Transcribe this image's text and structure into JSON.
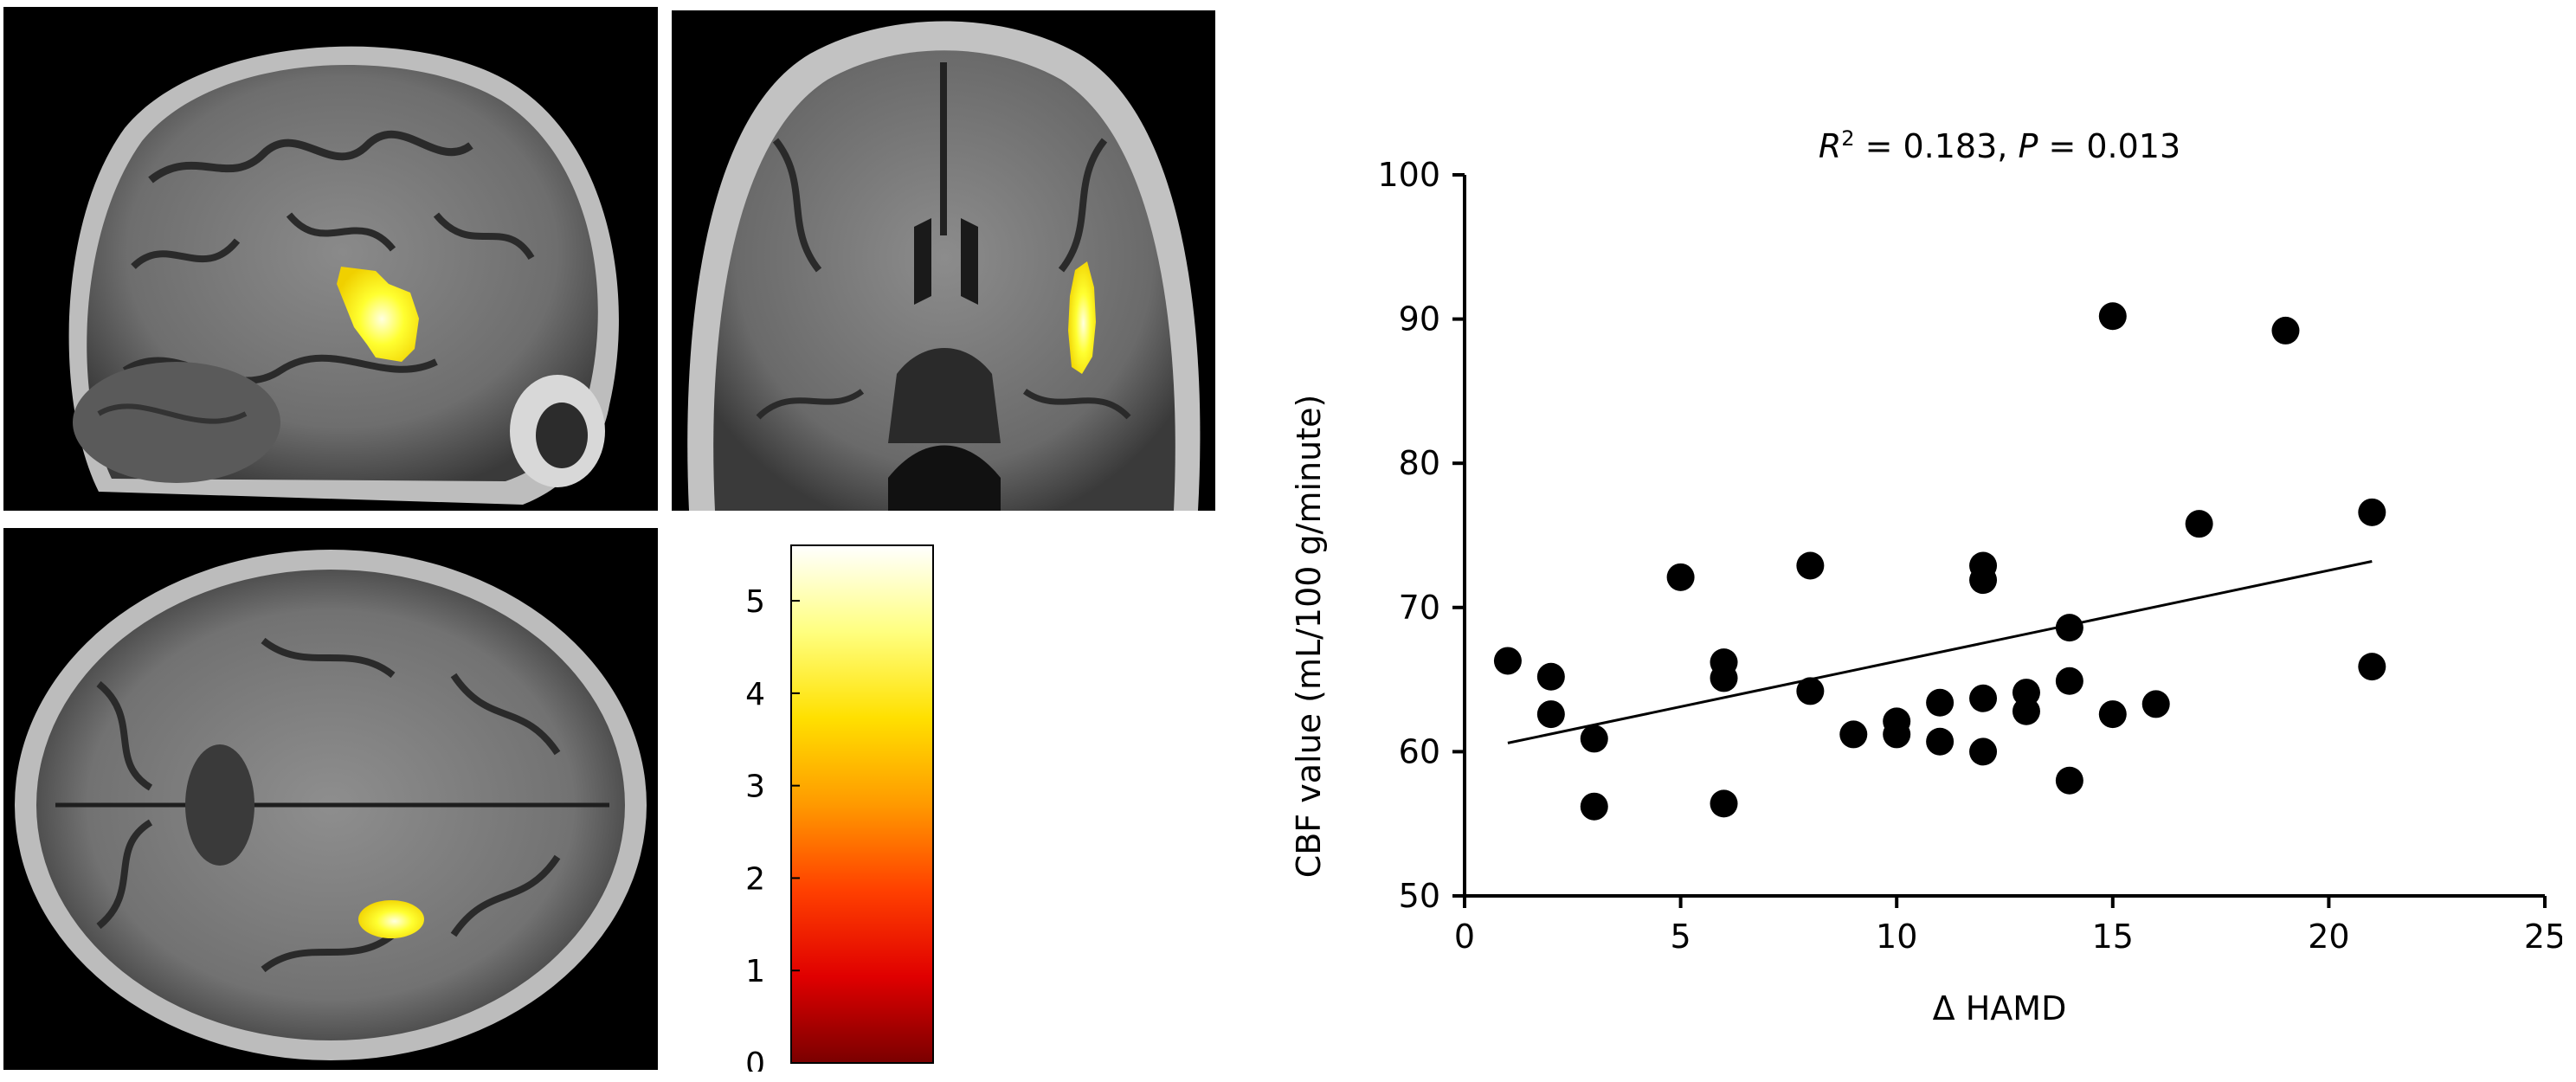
{
  "colorbar": {
    "ticks": [
      "0",
      "1",
      "2",
      "3",
      "4",
      "5"
    ],
    "min": 0,
    "max": 5.6,
    "colors": [
      "#7a0000",
      "#e00000",
      "#ff4000",
      "#ff9a00",
      "#ffe000",
      "#ffff80",
      "#ffffff"
    ]
  },
  "chart_data": {
    "type": "scatter",
    "title_r2_symbol": "R",
    "title_r2_exp": "2",
    "title_r2_value": " = 0.183, ",
    "title_p_symbol": "P",
    "title_p_value": " = 0.013",
    "xlabel": "Δ HAMD",
    "ylabel": "CBF value (mL/100 g/minute)",
    "xlim": [
      0,
      25
    ],
    "ylim": [
      50,
      100
    ],
    "xticks": [
      "0",
      "5",
      "10",
      "15",
      "20",
      "25"
    ],
    "yticks": [
      "50",
      "60",
      "70",
      "80",
      "90",
      "100"
    ],
    "grid": false,
    "points": [
      {
        "x": 1,
        "y": 66.3
      },
      {
        "x": 2,
        "y": 65.2
      },
      {
        "x": 2,
        "y": 62.6
      },
      {
        "x": 3,
        "y": 60.9
      },
      {
        "x": 3,
        "y": 56.2
      },
      {
        "x": 5,
        "y": 72.1
      },
      {
        "x": 6,
        "y": 66.2
      },
      {
        "x": 6,
        "y": 65.1
      },
      {
        "x": 6,
        "y": 56.4
      },
      {
        "x": 8,
        "y": 72.9
      },
      {
        "x": 8,
        "y": 64.2
      },
      {
        "x": 9,
        "y": 61.2
      },
      {
        "x": 10,
        "y": 62.1
      },
      {
        "x": 10,
        "y": 61.2
      },
      {
        "x": 11,
        "y": 63.4
      },
      {
        "x": 11,
        "y": 60.7
      },
      {
        "x": 12,
        "y": 72.9
      },
      {
        "x": 12,
        "y": 71.9
      },
      {
        "x": 12,
        "y": 63.7
      },
      {
        "x": 12,
        "y": 60.0
      },
      {
        "x": 13,
        "y": 64.1
      },
      {
        "x": 13,
        "y": 62.8
      },
      {
        "x": 14,
        "y": 68.6
      },
      {
        "x": 14,
        "y": 64.9
      },
      {
        "x": 14,
        "y": 58.0
      },
      {
        "x": 15,
        "y": 90.2
      },
      {
        "x": 15,
        "y": 62.6
      },
      {
        "x": 16,
        "y": 63.3
      },
      {
        "x": 17,
        "y": 75.8
      },
      {
        "x": 19,
        "y": 89.2
      },
      {
        "x": 21,
        "y": 76.6
      },
      {
        "x": 21,
        "y": 65.9
      }
    ],
    "fit_line": {
      "x": [
        1,
        21
      ],
      "y": [
        60.6,
        73.2
      ]
    }
  }
}
